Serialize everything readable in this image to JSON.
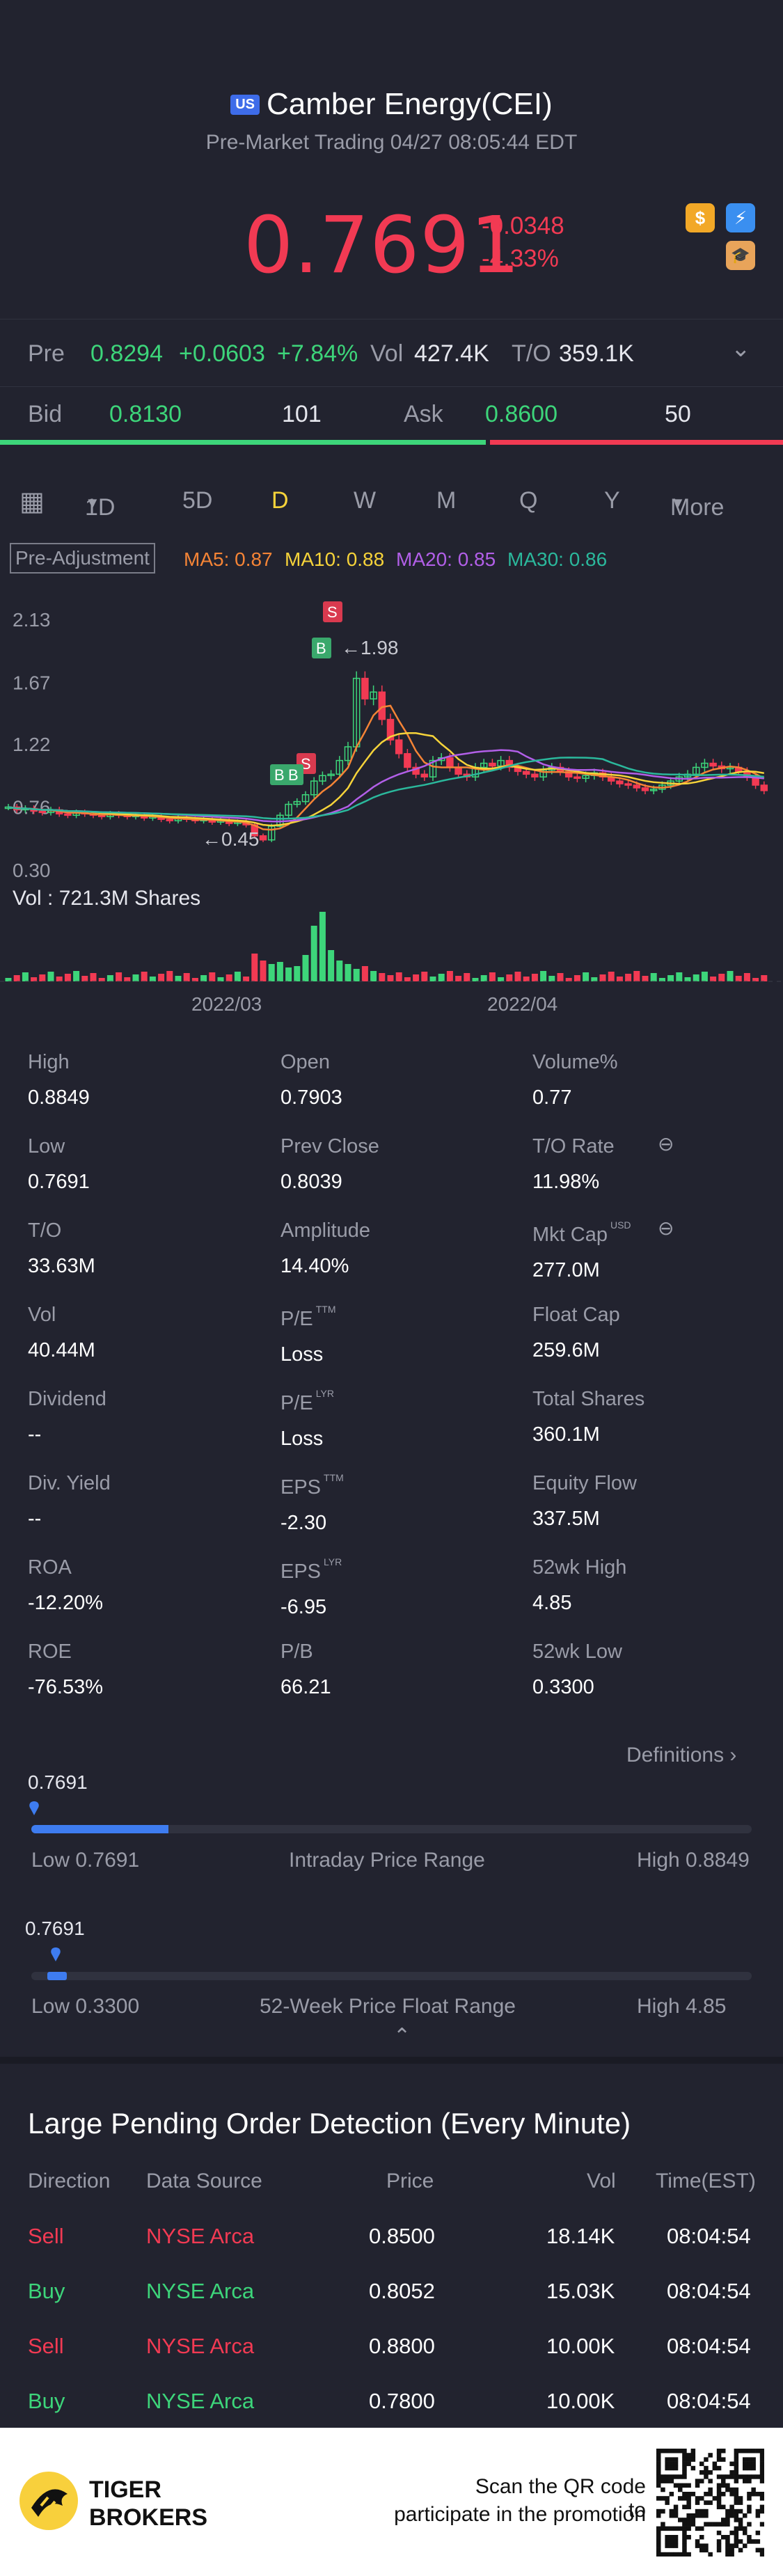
{
  "header": {
    "badge": "US",
    "title": "Camber Energy(CEI)",
    "subtitle": "Pre-Market Trading 04/27 08:05:44 EDT",
    "price": "0.7691",
    "change": "-0.0348",
    "change_pct": "-4.33%",
    "icons": [
      "dollar-icon",
      "flash-icon",
      "education-icon"
    ]
  },
  "pre_row": {
    "label": "Pre",
    "price": "0.8294",
    "change": "+0.0603",
    "change_pct": "+7.84%",
    "vol_label": "Vol",
    "vol_value": "427.4K",
    "to_label": "T/O",
    "to_value": "359.1K"
  },
  "bid_ask": {
    "bid_label": "Bid",
    "bid_price": "0.8130",
    "bid_size": "101",
    "ask_label": "Ask",
    "ask_price": "0.8600",
    "ask_size": "50",
    "bid_ratio": 0.62
  },
  "periods": [
    "1D",
    "5D",
    "D",
    "W",
    "M",
    "Q",
    "Y",
    "More"
  ],
  "active_period": "D",
  "indicators": {
    "preadj": "Pre-Adjustment",
    "ma5": "MA5: 0.87",
    "ma10": "MA10: 0.88",
    "ma20": "MA20: 0.85",
    "ma30": "MA30: 0.86"
  },
  "chart_data": {
    "type": "candlestick",
    "y_ticks": [
      "2.13",
      "1.67",
      "1.22",
      "0.76",
      "0.30"
    ],
    "x_ticks": [
      "2022/03",
      "2022/04"
    ],
    "high_marker": "1.98",
    "low_marker": "0.45",
    "trade_markers": [
      "S",
      "B",
      "S",
      "B",
      "B"
    ],
    "volume_label": "Vol  : 721.3M Shares",
    "colors": {
      "up": "#3dd57a",
      "down": "#f23a53",
      "ma5": "#f58436",
      "ma10": "#f6d33a",
      "ma20": "#b25fe8",
      "ma30": "#2bb89c"
    }
  },
  "stats": [
    {
      "label": "High",
      "value": "0.8849"
    },
    {
      "label": "Open",
      "value": "0.7903"
    },
    {
      "label": "Volume%",
      "value": "0.77"
    },
    {
      "label": "Low",
      "value": "0.7691"
    },
    {
      "label": "Prev Close",
      "value": "0.8039"
    },
    {
      "label": "T/O Rate",
      "value": "11.98%"
    },
    {
      "label": "T/O",
      "value": "33.63M"
    },
    {
      "label": "Amplitude",
      "value": "14.40%"
    },
    {
      "label": "Mkt Cap",
      "value": "277.0M",
      "sup": "USD"
    },
    {
      "label": "Vol",
      "value": "40.44M"
    },
    {
      "label": "P/E",
      "value": "Loss",
      "sup": "TTM"
    },
    {
      "label": "Float Cap",
      "value": "259.6M"
    },
    {
      "label": "Dividend",
      "value": "--"
    },
    {
      "label": "P/E",
      "value": "Loss",
      "sup": "LYR"
    },
    {
      "label": "Total Shares",
      "value": "360.1M"
    },
    {
      "label": "Div. Yield",
      "value": "--"
    },
    {
      "label": "EPS",
      "value": "-2.30",
      "sup": "TTM"
    },
    {
      "label": "Equity Flow",
      "value": "337.5M"
    },
    {
      "label": "ROA",
      "value": "-12.20%"
    },
    {
      "label": "EPS",
      "value": "-6.95",
      "sup": "LYR"
    },
    {
      "label": "52wk High",
      "value": "4.85"
    },
    {
      "label": "ROE",
      "value": "-76.53%"
    },
    {
      "label": "P/B",
      "value": "66.21"
    },
    {
      "label": "52wk Low",
      "value": "0.3300"
    }
  ],
  "definitions": "Definitions",
  "intraday": {
    "marker": "0.7691",
    "low": "Low 0.7691",
    "title": "Intraday Price Range",
    "high": "High 0.8849",
    "fill": 0.19
  },
  "week52": {
    "marker": "0.7691",
    "low": "Low 0.3300",
    "title": "52-Week Price Float Range",
    "high": "High 4.85",
    "fill": 0.03
  },
  "orders": {
    "title": "Large Pending Order Detection (Every Minute)",
    "headers": [
      "Direction",
      "Data Source",
      "Price",
      "Vol",
      "Time(EST)"
    ],
    "rows": [
      {
        "dir": "Sell",
        "src": "NYSE Arca",
        "price": "0.8500",
        "vol": "18.14K",
        "time": "08:04:54"
      },
      {
        "dir": "Buy",
        "src": "NYSE Arca",
        "price": "0.8052",
        "vol": "15.03K",
        "time": "08:04:54"
      },
      {
        "dir": "Sell",
        "src": "NYSE Arca",
        "price": "0.8800",
        "vol": "10.00K",
        "time": "08:04:54"
      },
      {
        "dir": "Buy",
        "src": "NYSE Arca",
        "price": "0.7800",
        "vol": "10.00K",
        "time": "08:04:54"
      }
    ]
  },
  "footer": {
    "brand_line1": "TIGER",
    "brand_line2": "BROKERS",
    "promo_line1": "Scan the QR code to",
    "promo_line2": "participate in the promotion"
  }
}
